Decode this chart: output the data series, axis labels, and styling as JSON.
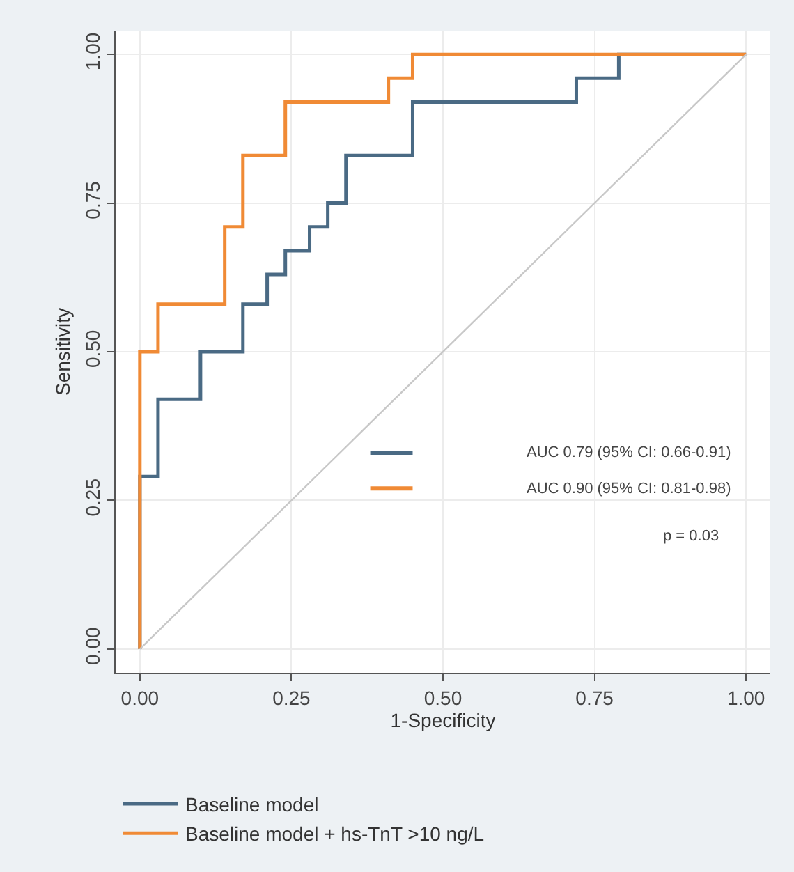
{
  "chart_data": {
    "type": "step",
    "xlabel": "1-Specificity",
    "ylabel": "Sensitivity",
    "series": [
      {
        "name": "Baseline model",
        "color": "#4a6a84",
        "x": [
          0,
          0,
          0.03,
          0.1,
          0.17,
          0.21,
          0.24,
          0.28,
          0.31,
          0.34,
          0.45,
          0.72,
          0.79,
          1.0
        ],
        "values": [
          0,
          0.29,
          0.42,
          0.5,
          0.58,
          0.63,
          0.67,
          0.71,
          0.75,
          0.83,
          0.92,
          0.96,
          1.0,
          1.0
        ]
      },
      {
        "name": "Baseline model + hs-TnT >10 ng/L",
        "color": "#f08a35",
        "x": [
          0,
          0,
          0.03,
          0.14,
          0.17,
          0.24,
          0.41,
          0.45,
          1.0
        ],
        "values": [
          0,
          0.5,
          0.58,
          0.71,
          0.83,
          0.92,
          0.96,
          1.0,
          1.0
        ]
      },
      {
        "type": "line",
        "color": "#c8c8c8",
        "x": [
          0,
          1
        ],
        "values": [
          0,
          1
        ]
      }
    ],
    "xlim": [
      -0.04,
      1.04
    ],
    "ylim": [
      -0.04,
      1.04
    ],
    "xticks": [
      {
        "value": 0,
        "label": "0.00"
      },
      0.25,
      {
        "value": 0.5,
        "label": "0.50"
      },
      0.75,
      {
        "value": 1,
        "label": "1.00"
      }
    ],
    "yticks": [
      {
        "value": 0,
        "label": "0.00"
      },
      0.25,
      {
        "value": 0.5,
        "label": "0.50"
      },
      0.75,
      {
        "value": 1,
        "label": "1.00"
      }
    ],
    "annotations": [
      "AUC 0.79 (95% CI: 0.66-0.91)",
      "AUC 0.90 (95% CI: 0.81-0.98)",
      "p = 0.03"
    ],
    "grid": true,
    "legend": "bottom",
    "marker": "none",
    "line_style": "solid"
  }
}
